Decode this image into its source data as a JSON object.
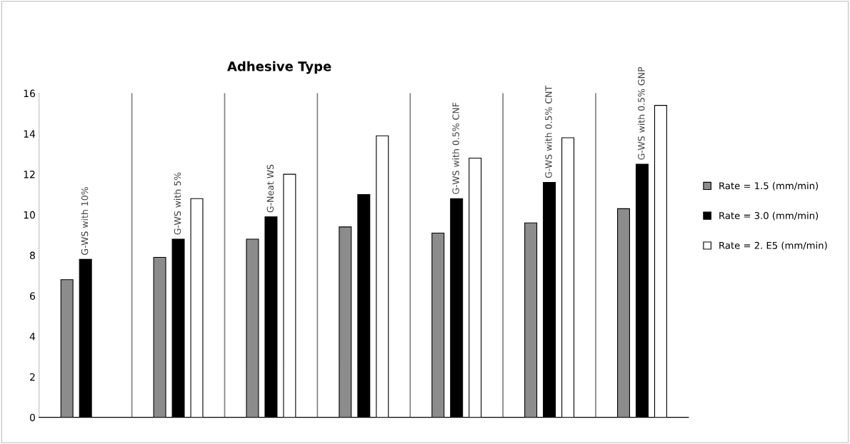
{
  "chart_data": {
    "type": "bar",
    "title": "Adhesive Type",
    "categories": [
      "G-WS with 10%",
      "G-WS with 5%",
      "G-Neat WS",
      null,
      "G-WS with 0.5% CNF",
      "G-WS with 0.5% CNT",
      "G-WS with 0.5% GNP"
    ],
    "series": [
      {
        "name": "Rate = 1.5 (mm/min)",
        "color": "#8c8c8c",
        "values": [
          6.8,
          7.9,
          8.8,
          9.4,
          9.1,
          9.6,
          10.3
        ]
      },
      {
        "name": "Rate = 3.0 (mm/min)",
        "color": "#000000",
        "values": [
          7.8,
          8.8,
          9.9,
          11.0,
          10.8,
          11.6,
          12.5
        ]
      },
      {
        "name": "Rate = 2. E5 (mm/min)",
        "color": "#ffffff",
        "values": [
          null,
          10.8,
          12.0,
          13.9,
          12.8,
          13.8,
          15.4
        ]
      }
    ],
    "ylim": [
      0,
      16
    ],
    "yticks": [
      0,
      2,
      4,
      6,
      8,
      10,
      12,
      14,
      16
    ],
    "grid": "x",
    "legend": "right"
  }
}
